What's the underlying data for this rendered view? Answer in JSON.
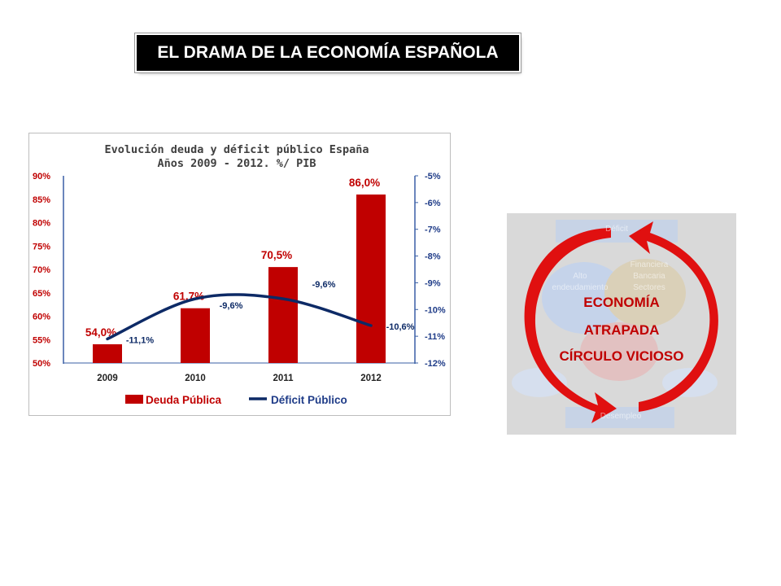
{
  "slide": {
    "title": "EL DRAMA DE LA ECONOMÍA ESPAÑOLA"
  },
  "colors": {
    "bar": "#c00000",
    "line": "#0d2a66",
    "axis_text": "#c00000",
    "axis_text_right": "#1f3c88",
    "title_text": "#404040"
  },
  "chart_data": {
    "type": "bar",
    "title": "Evolución deuda y déficit público España",
    "subtitle": "Años 2009 - 2012. %/ PIB",
    "categories": [
      "2009",
      "2010",
      "2011",
      "2012"
    ],
    "series": [
      {
        "name": "Deuda Pública",
        "type": "bar",
        "axis": "left",
        "values": [
          54.0,
          61.7,
          70.5,
          86.0
        ],
        "labels": [
          "54,0%",
          "61,7%",
          "70,5%",
          "86,0%"
        ]
      },
      {
        "name": "Déficit Público",
        "type": "line",
        "axis": "right",
        "values": [
          -11.1,
          -9.6,
          -9.6,
          -10.6
        ],
        "labels": [
          "-11,1%",
          "-9,6%",
          "-9,6%",
          "-10,6%"
        ]
      }
    ],
    "y_left": {
      "range": [
        50,
        90
      ],
      "ticks": [
        "50%",
        "55%",
        "60%",
        "65%",
        "70%",
        "75%",
        "80%",
        "85%",
        "90%"
      ]
    },
    "y_right": {
      "range": [
        -12,
        -5
      ],
      "ticks": [
        "-12%",
        "-11%",
        "-10%",
        "-9%",
        "-8%",
        "-7%",
        "-6%",
        "-5%"
      ]
    },
    "legend": {
      "position": "bottom",
      "items": [
        "Deuda Pública",
        "Déficit Público"
      ]
    },
    "grid": false
  },
  "diagram": {
    "lines": [
      "ECONOMÍA",
      "ATRAPADA",
      "CÍRCULO VICIOSO"
    ],
    "faint_labels": [
      "Déficit",
      "Alto",
      "endeudamiento",
      "Financiera",
      "Bancaria",
      "Sectores",
      "Desempleo"
    ]
  }
}
